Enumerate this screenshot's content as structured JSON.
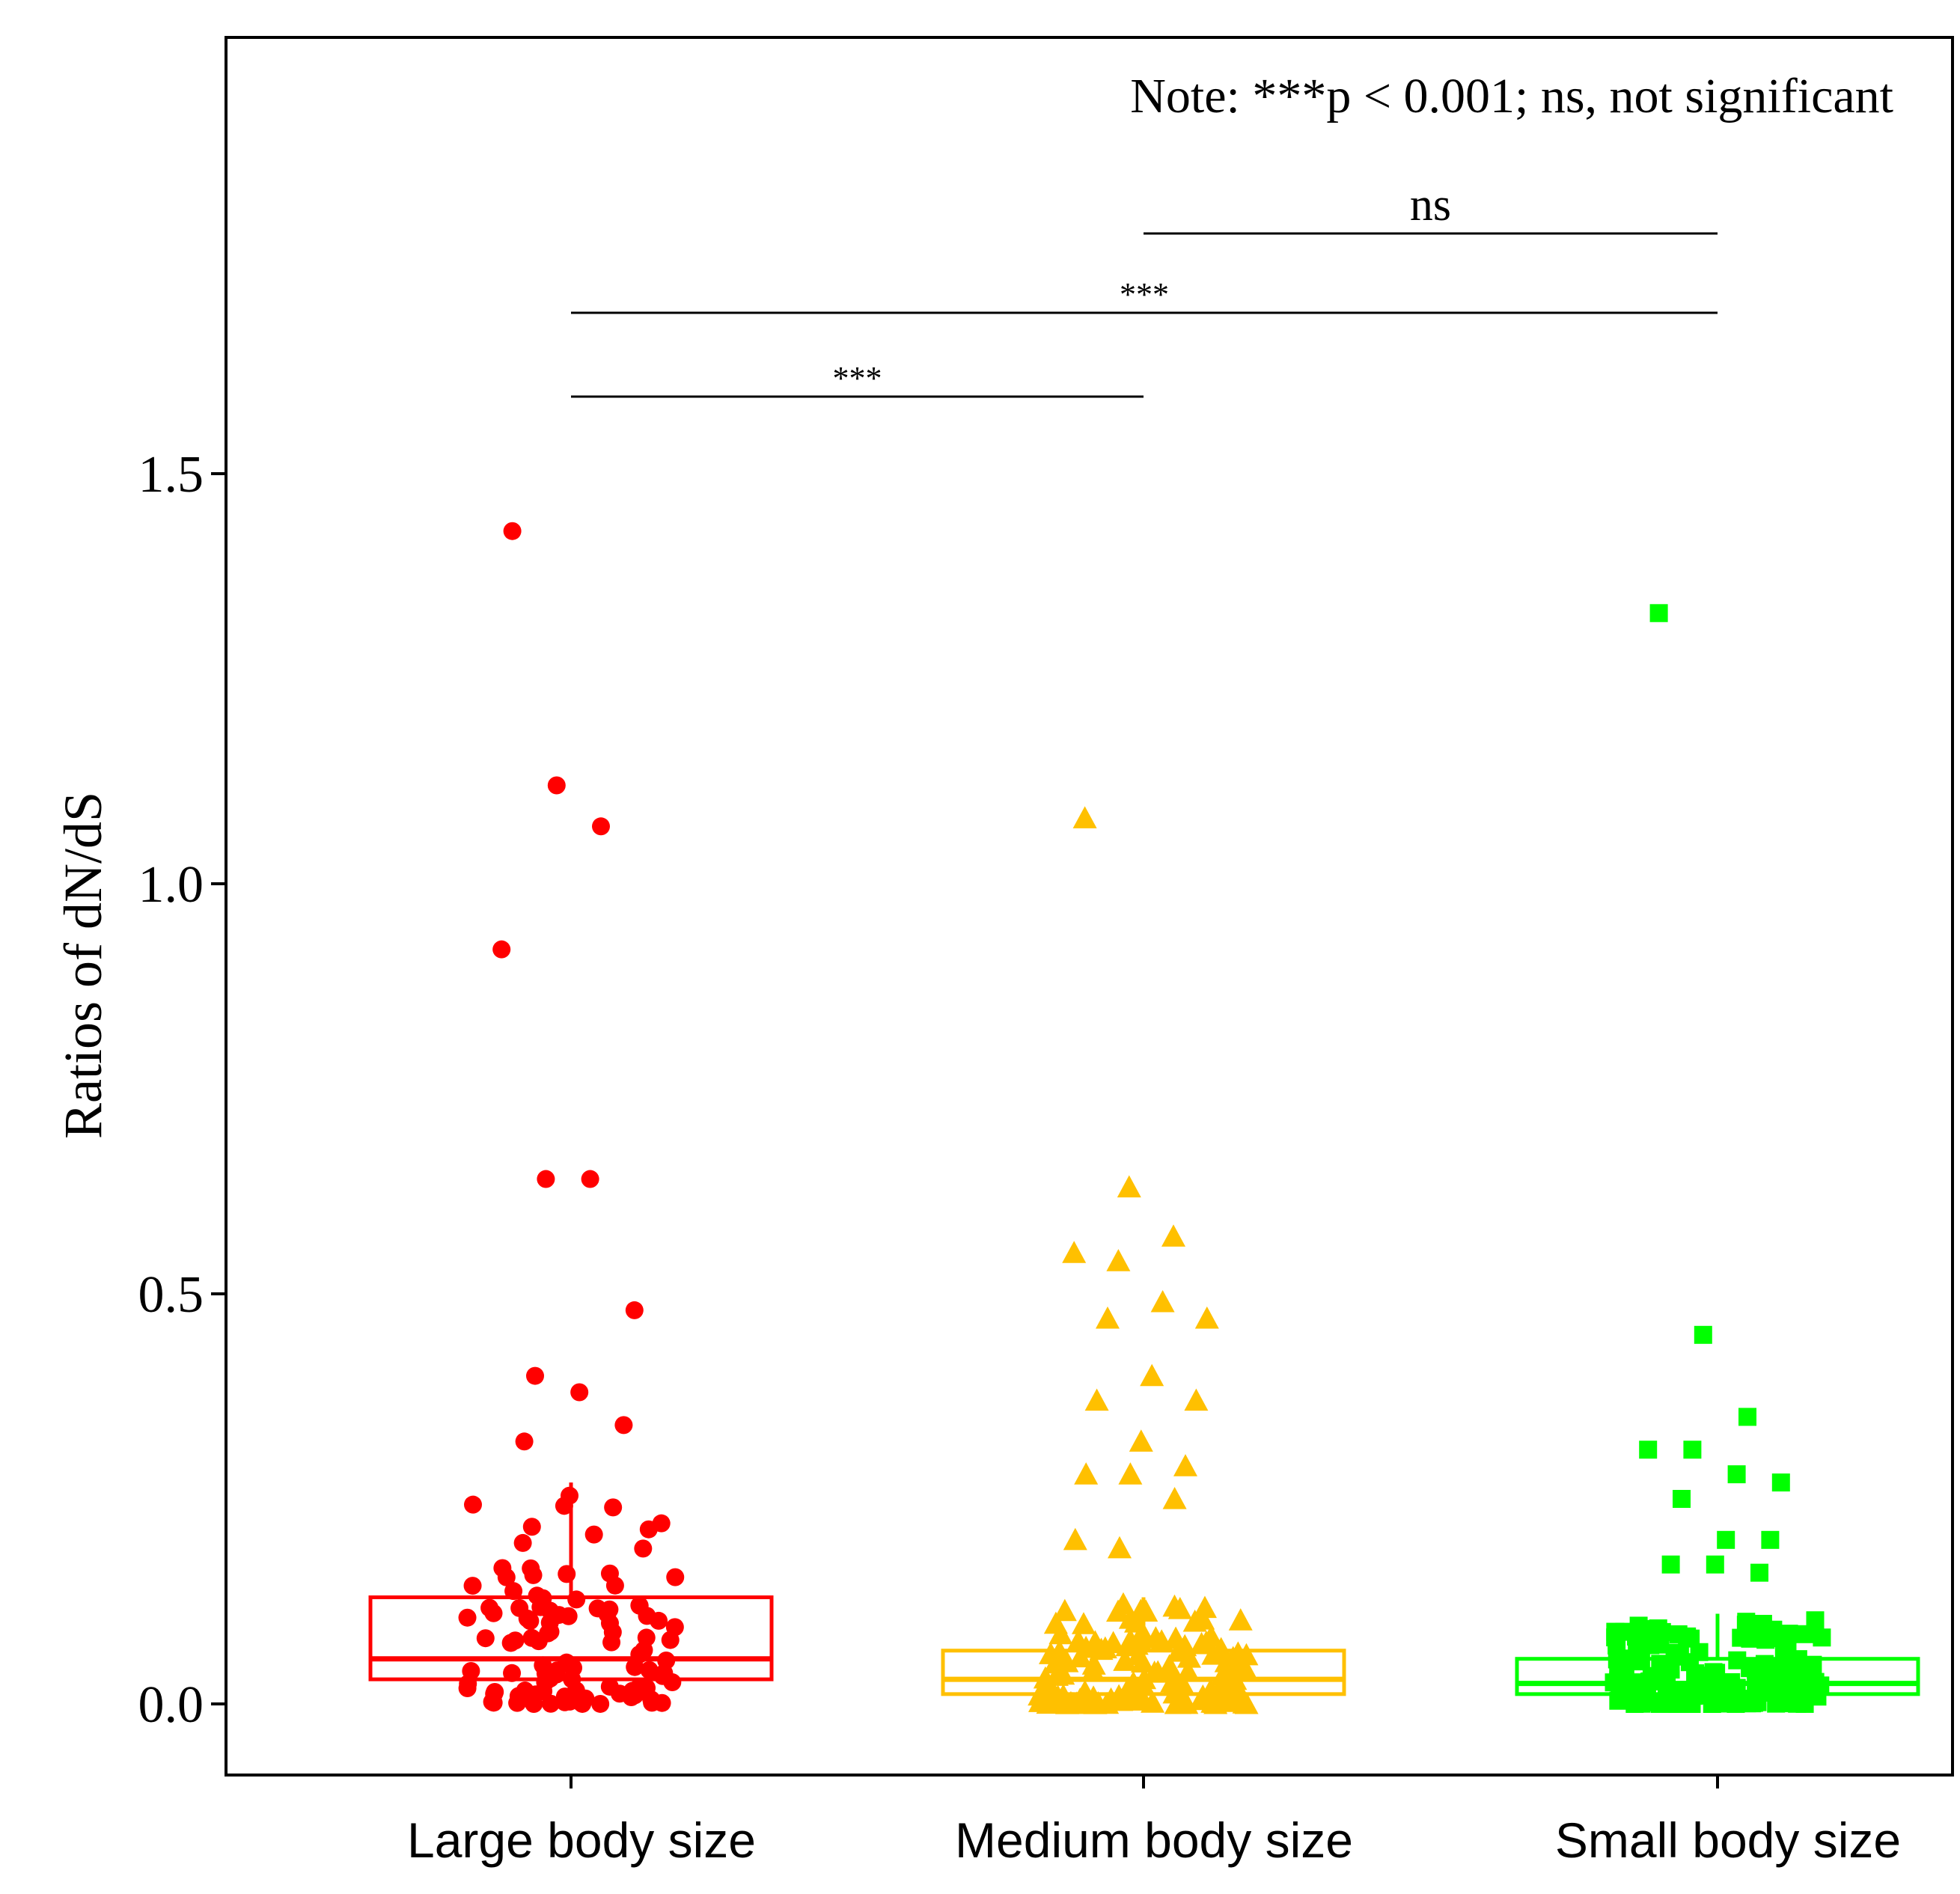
{
  "chart_data": {
    "type": "box",
    "title": "",
    "xlabel": "",
    "ylabel": "Ratios of dN/dS",
    "ylim": [
      -0.09,
      2.04
    ],
    "yticks": [
      0.0,
      0.5,
      1.0,
      1.5
    ],
    "ytick_labels": [
      "0.0",
      "0.5",
      "1.0",
      "1.5"
    ],
    "grid": false,
    "categories": [
      "Large body size",
      "Medium body size",
      "Small body size"
    ],
    "note": "Note: ***p < 0.001; ns, not significant",
    "boxplots": [
      {
        "name": "Large body size",
        "color": "#ff0000",
        "marker": "circle",
        "q1": 0.03,
        "median": 0.055,
        "q3": 0.13,
        "whisker_low": 0.0,
        "whisker_high": 0.27
      },
      {
        "name": "Medium body size",
        "color": "#ffc000",
        "marker": "triangle",
        "q1": 0.012,
        "median": 0.03,
        "q3": 0.065,
        "whisker_low": 0.0,
        "whisker_high": 0.13
      },
      {
        "name": "Small body size",
        "color": "#00ff00",
        "marker": "square",
        "q1": 0.012,
        "median": 0.025,
        "q3": 0.055,
        "whisker_low": 0.0,
        "whisker_high": 0.11
      }
    ],
    "outliers": [
      {
        "group": 0,
        "values": [
          1.43,
          1.12,
          1.07,
          0.92,
          0.64,
          0.64,
          0.48,
          0.4,
          0.38,
          0.34,
          0.32
        ]
      },
      {
        "group": 1,
        "values": [
          1.08,
          0.63,
          0.57,
          0.55,
          0.54,
          0.49,
          0.47,
          0.47,
          0.4,
          0.37,
          0.37,
          0.32,
          0.29,
          0.28,
          0.28,
          0.25,
          0.2,
          0.19
        ]
      },
      {
        "group": 2,
        "values": [
          1.33,
          0.45,
          0.35,
          0.31,
          0.31,
          0.28,
          0.27,
          0.25,
          0.2,
          0.2,
          0.17,
          0.17,
          0.16
        ]
      }
    ],
    "significance": [
      {
        "from": 0,
        "to": 1,
        "label": "***"
      },
      {
        "from": 0,
        "to": 2,
        "label": "***"
      },
      {
        "from": 1,
        "to": 2,
        "label": "ns"
      }
    ]
  }
}
